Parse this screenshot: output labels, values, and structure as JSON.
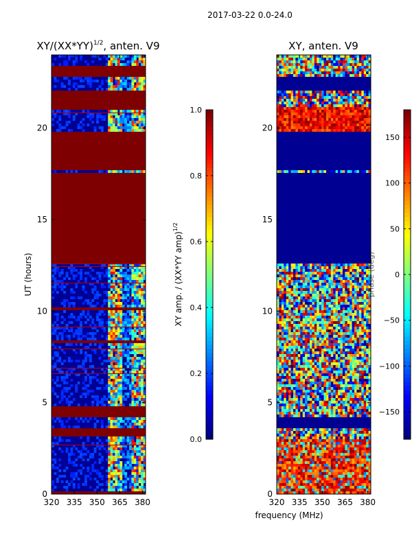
{
  "suptitle": "2017-03-22 0.0-24.0",
  "shared_xlabel": "frequency (MHz)",
  "colormap": [
    "#00007f",
    "#0000ff",
    "#007fff",
    "#00ffff",
    "#7fff7f",
    "#ffff00",
    "#ff7f00",
    "#ff0000",
    "#7f0000"
  ],
  "chart_data": [
    {
      "type": "heatmap",
      "title_main": "XY/(XX*YY)",
      "title_exp": "1/2",
      "title_tail": ", anten. V9",
      "ylabel": "UT (hours)",
      "xlim": [
        320,
        382
      ],
      "ylim": [
        0,
        24
      ],
      "xticks": [
        320,
        335,
        350,
        365,
        380
      ],
      "yticks": [
        0,
        5,
        10,
        15,
        20
      ],
      "colorbar": {
        "label_main": "XY amp. / (XX*YY amp)",
        "label_exp": "1/2",
        "vmin": 0.0,
        "vmax": 1.0,
        "ticks": [
          "0.0",
          "0.2",
          "0.4",
          "0.6",
          "0.8",
          "1.0"
        ],
        "tick_values": [
          0,
          0.2,
          0.4,
          0.6,
          0.8,
          1.0
        ]
      },
      "saturated_bands_ut": [
        [
          0,
          0.2
        ],
        [
          3.2,
          3.6
        ],
        [
          4.2,
          4.8
        ],
        [
          8.2,
          8.4
        ],
        [
          10.0,
          10.2
        ],
        [
          12.6,
          17.5
        ],
        [
          17.7,
          19.8
        ],
        [
          21.0,
          22.0
        ],
        [
          22.8,
          23.4
        ]
      ]
    },
    {
      "type": "heatmap",
      "title_main": "XY, anten. V9",
      "xlim": [
        320,
        382
      ],
      "ylim": [
        0,
        24
      ],
      "xticks": [
        320,
        335,
        350,
        365,
        380
      ],
      "yticks": [
        0,
        5,
        10,
        15,
        20
      ],
      "colorbar": {
        "label_main": "phase (deg)",
        "vmin": -180,
        "vmax": 180,
        "ticks": [
          "−150",
          "−100",
          "−50",
          "0",
          "50",
          "100",
          "150"
        ],
        "tick_values": [
          -150,
          -100,
          -50,
          0,
          50,
          100,
          150
        ]
      },
      "flat_bands_ut": [
        [
          3.6,
          4.2
        ],
        [
          12.6,
          17.5
        ],
        [
          17.7,
          19.8
        ],
        [
          22.0,
          22.8
        ]
      ]
    }
  ]
}
